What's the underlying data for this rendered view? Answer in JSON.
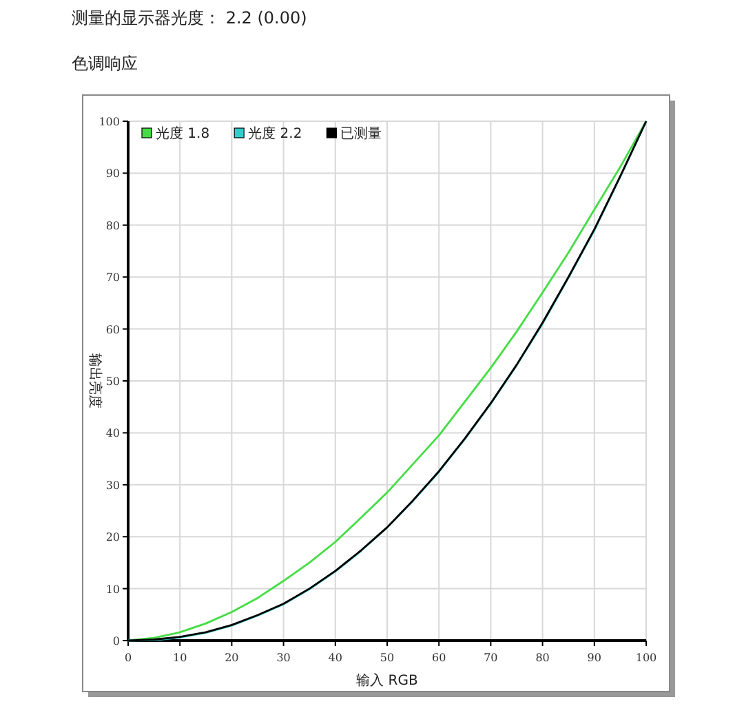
{
  "chart_data": {
    "type": "line",
    "title": "测量的显示器光度： 2.2 (0.00)",
    "subtitle": "色调响应",
    "xlabel": "输入 RGB",
    "ylabel": "输出亮度",
    "x": [
      0,
      5,
      10,
      15,
      20,
      25,
      30,
      35,
      40,
      45,
      50,
      55,
      60,
      65,
      70,
      75,
      80,
      85,
      90,
      95,
      100
    ],
    "series": [
      {
        "name": "光度 1.8",
        "color": "#44dd44",
        "values": [
          0,
          0.5,
          1.6,
          3.3,
          5.5,
          8.2,
          11.5,
          15,
          19,
          23.7,
          28.5,
          34,
          39.5,
          46,
          52.5,
          59.5,
          67,
          74.7,
          83,
          91.2,
          100
        ]
      },
      {
        "name": "光度 2.2",
        "color": "#33cccc",
        "values": [
          0,
          0.1,
          0.6,
          1.5,
          2.9,
          4.8,
          7,
          9.9,
          13.3,
          17.3,
          21.8,
          26.9,
          32.5,
          38.8,
          45.6,
          53,
          61,
          69.9,
          79,
          89.3,
          100
        ]
      },
      {
        "name": "已测量",
        "color": "#000000",
        "values": [
          0,
          0.2,
          0.7,
          1.6,
          3,
          4.9,
          7.1,
          10,
          13.4,
          17.4,
          21.8,
          27,
          32.6,
          38.9,
          45.7,
          53.1,
          61.2,
          70,
          79.2,
          89.4,
          100
        ]
      }
    ],
    "xlim": [
      0,
      100
    ],
    "ylim": [
      0,
      100
    ],
    "xticks": [
      0,
      10,
      20,
      30,
      40,
      50,
      60,
      70,
      80,
      90,
      100
    ],
    "yticks": [
      0,
      10,
      20,
      30,
      40,
      50,
      60,
      70,
      80,
      90,
      100
    ],
    "grid": true,
    "legend": "top left",
    "marker": "none",
    "line_style": "solid"
  }
}
